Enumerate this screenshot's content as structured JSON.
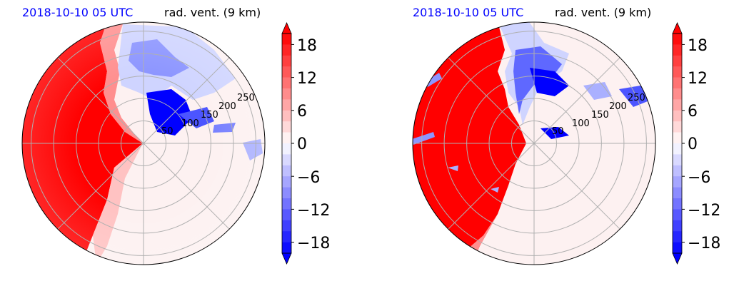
{
  "chart_data": [
    {
      "type": "polar-contourf",
      "time_label": "2018-10-10 05 UTC",
      "var_label": "rad. vent. (9 km)",
      "radial_ticks": [
        "50",
        "100",
        "150",
        "200",
        "250"
      ],
      "radial_values": [
        50,
        100,
        150,
        200,
        250
      ],
      "r_max": 270,
      "angular_grid_deg": [
        0,
        45,
        90,
        135,
        180,
        225,
        270,
        315
      ],
      "colorbar": {
        "ticks": [
          "18",
          "12",
          "6",
          "0",
          "−6",
          "−12",
          "−18"
        ],
        "tick_values": [
          18,
          12,
          6,
          0,
          -6,
          -12,
          -18
        ],
        "range": [
          -20,
          20
        ],
        "levels": 20,
        "cmap": "bwr",
        "extend": "both"
      },
      "grid": true
    },
    {
      "type": "polar-contourf",
      "time_label": "2018-10-10 05 UTC",
      "var_label": "rad. vent. (9 km)",
      "radial_ticks": [
        "50",
        "100",
        "150",
        "200",
        "250"
      ],
      "radial_values": [
        50,
        100,
        150,
        200,
        250
      ],
      "r_max": 270,
      "angular_grid_deg": [
        0,
        45,
        90,
        135,
        180,
        225,
        270,
        315
      ],
      "colorbar": {
        "ticks": [
          "18",
          "12",
          "6",
          "0",
          "−6",
          "−12",
          "−18"
        ],
        "tick_values": [
          18,
          12,
          6,
          0,
          -6,
          -12,
          -18
        ],
        "range": [
          -20,
          20
        ],
        "levels": 20,
        "cmap": "bwr",
        "extend": "both"
      },
      "grid": true
    }
  ],
  "colors": {
    "title_time": "#0000ff",
    "red": "#ff0000",
    "blue": "#0000ff",
    "neutral": "#fdf1f1",
    "grid": "#b0b0b0"
  }
}
